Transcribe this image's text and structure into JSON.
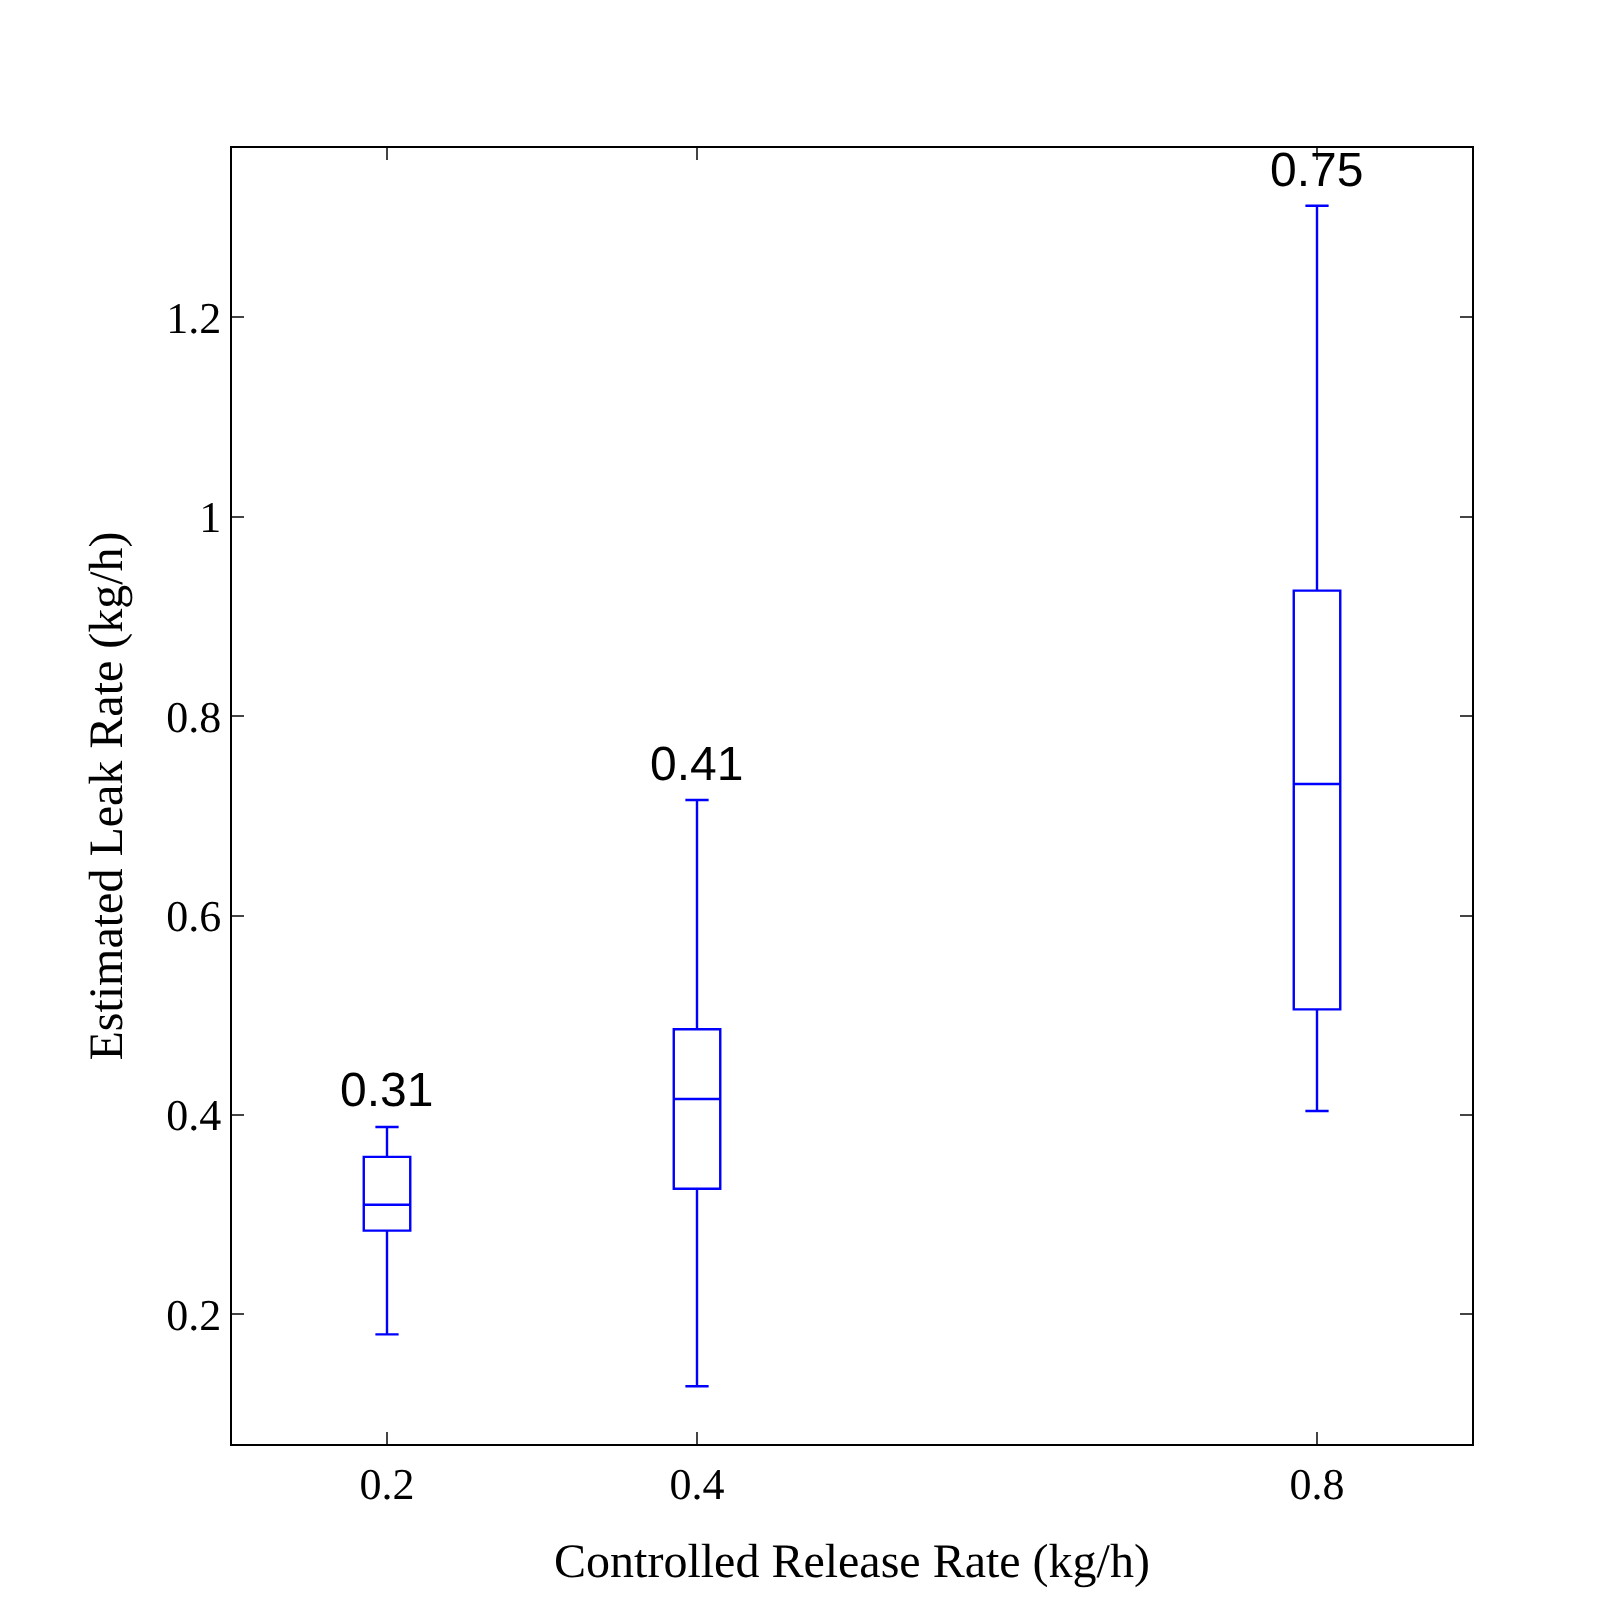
{
  "chart_data": {
    "type": "box",
    "xlabel": "Controlled Release Rate (kg/h)",
    "ylabel": "Estimated Leak Rate (kg/h)",
    "x": [
      0.2,
      0.4,
      0.8
    ],
    "boxes": [
      {
        "low": 0.18,
        "q1": 0.284,
        "median": 0.31,
        "q3": 0.358,
        "high": 0.388
      },
      {
        "low": 0.128,
        "q1": 0.326,
        "median": 0.416,
        "q3": 0.486,
        "high": 0.716
      },
      {
        "low": 0.404,
        "q1": 0.506,
        "median": 0.732,
        "q3": 0.926,
        "high": 1.312
      }
    ],
    "color": "#0000ff",
    "xlim": [
      0.1,
      0.9
    ],
    "xticks": [
      0.2,
      0.4,
      0.8
    ],
    "ylim": [
      0.07,
      1.37
    ],
    "yticks": [
      0.2,
      0.4,
      0.6,
      0.8,
      1,
      1.2
    ],
    "annotations": [
      {
        "text": "0.31",
        "x": 0.2,
        "y": 0.388
      },
      {
        "text": "0.41",
        "x": 0.4,
        "y": 0.716
      },
      {
        "text": "0.75",
        "x": 0.8,
        "y": 1.312
      }
    ]
  }
}
